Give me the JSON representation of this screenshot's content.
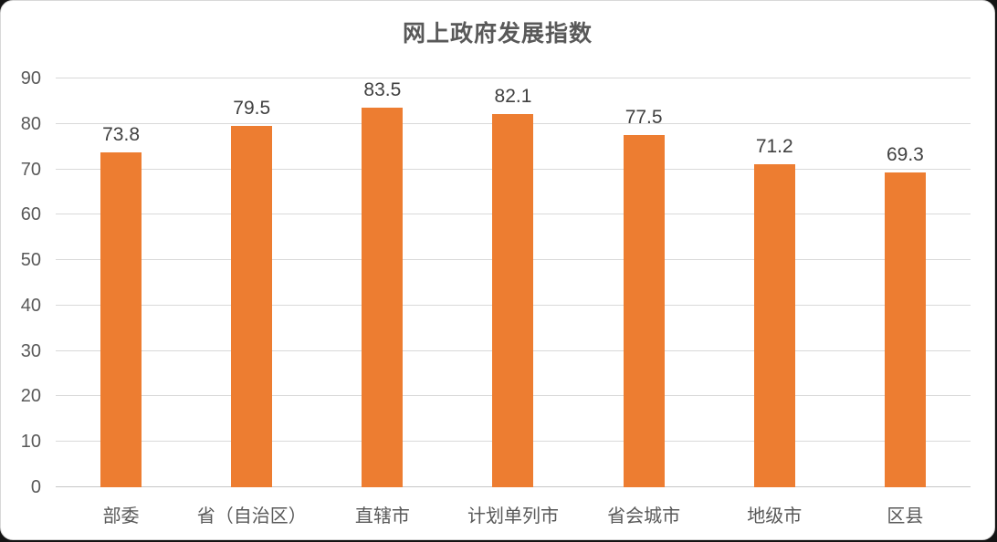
{
  "chart_data": {
    "type": "bar",
    "title": "网上政府发展指数",
    "categories": [
      "部委",
      "省（自治区）",
      "直辖市",
      "计划单列市",
      "省会城市",
      "地级市",
      "区县"
    ],
    "values": [
      73.8,
      79.5,
      83.5,
      82.1,
      77.5,
      71.2,
      69.3
    ],
    "xlabel": "",
    "ylabel": "",
    "ylim": [
      0,
      90
    ],
    "ytick_step": 10,
    "grid": true,
    "legend": "none",
    "colors": {
      "bar": "#ED7D31",
      "title_text": "#595959",
      "axis_text": "#595959",
      "value_label_text": "#404040",
      "gridline": "#D9D9D9",
      "axis_line": "#C6C6C6",
      "card_background": "#FFFFFF",
      "page_background": "#141414"
    }
  }
}
